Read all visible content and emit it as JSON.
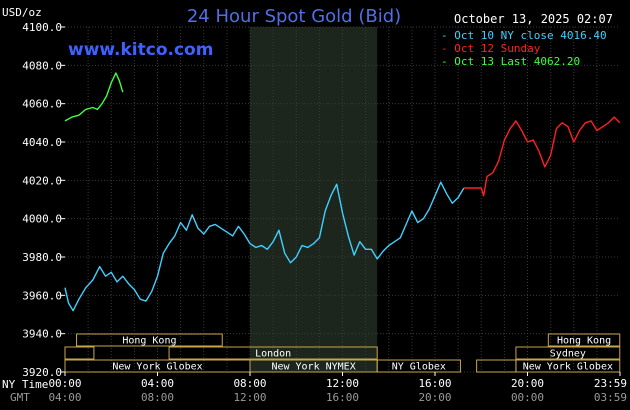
{
  "chart_data": {
    "type": "line",
    "title": "24 Hour Spot Gold (Bid)",
    "site": "www.kitco.com",
    "date": "October 13, 2025 02:07",
    "y_unit": "USD/oz",
    "ylim": [
      3920,
      4100
    ],
    "xlim": [
      0,
      24
    ],
    "y_ticks": [
      "4100.0",
      "4080.0",
      "4060.0",
      "4040.0",
      "4020.0",
      "4000.0",
      "3980.0",
      "3960.0",
      "3940.0",
      "3920.0"
    ],
    "x_ticks_ny": [
      "00:00",
      "04:00",
      "08:00",
      "12:00",
      "16:00",
      "20:00",
      "23:59"
    ],
    "x_ticks_gmt": [
      "04:00",
      "08:00",
      "12:00",
      "16:00",
      "20:00",
      "00:00",
      "03:59"
    ],
    "x_label_ny": "NY Time",
    "x_label_gmt": "GMT",
    "grid": true,
    "legend_position": "top-right",
    "legend": [
      {
        "name": "Oct 10 NY close 4016.40",
        "color": "#40d0ff"
      },
      {
        "name": "Oct 12 Sunday",
        "color": "#ff2020"
      },
      {
        "name": "Oct 13 Last 4062.20",
        "color": "#40ff40"
      }
    ],
    "highlight_range": [
      8,
      13.5
    ],
    "series": [
      {
        "color": "#40d0ff",
        "x": [
          0,
          0.15,
          0.35,
          0.6,
          0.9,
          1.2,
          1.5,
          1.75,
          2,
          2.25,
          2.5,
          2.75,
          3,
          3.25,
          3.5,
          3.75,
          4,
          4.25,
          4.5,
          4.75,
          5,
          5.25,
          5.5,
          5.75,
          6,
          6.25,
          6.5,
          6.75,
          7,
          7.25,
          7.5,
          7.75,
          8,
          8.25,
          8.5,
          8.75,
          9,
          9.25,
          9.5,
          9.75,
          10,
          10.25,
          10.5,
          10.75,
          11,
          11.25,
          11.5,
          11.75,
          12,
          12.25,
          12.5,
          12.75,
          13,
          13.25,
          13.5,
          13.75,
          14,
          14.25,
          14.5,
          14.75,
          15,
          15.25,
          15.5,
          15.75,
          16,
          16.25,
          16.5,
          16.75,
          17,
          17.25
        ],
        "values": [
          3964,
          3956,
          3952,
          3958,
          3964,
          3968,
          3975,
          3970,
          3972,
          3967,
          3970,
          3966,
          3963,
          3958,
          3957,
          3962,
          3970,
          3982,
          3987,
          3991,
          3998,
          3994,
          4002,
          3995,
          3992,
          3996,
          3997,
          3995,
          3993,
          3991,
          3996,
          3992,
          3987,
          3985,
          3986,
          3984,
          3988,
          3994,
          3982,
          3977,
          3980,
          3986,
          3985,
          3987,
          3990,
          4004,
          4012,
          4018,
          4003,
          3991,
          3981,
          3988,
          3984,
          3984,
          3979,
          3983,
          3986,
          3988,
          3990,
          3997,
          4004,
          3998,
          4000,
          4005,
          4012,
          4019,
          4013,
          4008,
          4011,
          4016
        ]
      },
      {
        "color": "#ff2020",
        "x": [
          17.25,
          17.6,
          18,
          18.1,
          18.25,
          18.5,
          18.75,
          19,
          19.25,
          19.5,
          19.75,
          20,
          20.25,
          20.5,
          20.75,
          21,
          21.25,
          21.5,
          21.75,
          22,
          22.25,
          22.5,
          22.75,
          23,
          23.25,
          23.5,
          23.75,
          23.99
        ],
        "values": [
          4016,
          4016,
          4016,
          4012,
          4022,
          4024,
          4030,
          4041,
          4047,
          4051,
          4046,
          4040,
          4041,
          4035,
          4027,
          4033,
          4047,
          4050,
          4048,
          4040,
          4046,
          4050,
          4051,
          4046,
          4048,
          4050,
          4053,
          4050
        ]
      },
      {
        "color": "#40ff40",
        "x": [
          0,
          0.3,
          0.6,
          0.9,
          1.2,
          1.4,
          1.6,
          1.8,
          2,
          2.2,
          2.35,
          2.5
        ],
        "values": [
          4051,
          4053,
          4054,
          4057,
          4058,
          4057,
          4060,
          4064,
          4071,
          4076,
          4072,
          4066
        ]
      }
    ],
    "sessions": [
      {
        "name": "Hong Kong",
        "start": 0.5,
        "end": 6.8,
        "row": 0
      },
      {
        "name": "",
        "start": 0,
        "end": 1.25,
        "row": 1
      },
      {
        "name": "London",
        "start": 4.5,
        "end": 13.5,
        "row": 1
      },
      {
        "name": "New York Globex",
        "start": 0,
        "end": 8,
        "row": 2
      },
      {
        "name": "New York NYMEX",
        "start": 8,
        "end": 13.5,
        "row": 2
      },
      {
        "name": "NY Globex",
        "start": 13.5,
        "end": 17.1,
        "row": 2
      },
      {
        "name": "Hong Kong",
        "start": 20.9,
        "end": 23.99,
        "row": 0
      },
      {
        "name": "Sydney",
        "start": 19.5,
        "end": 23.99,
        "row": 1
      },
      {
        "name": "",
        "start": 17.8,
        "end": 19.5,
        "row": 2
      },
      {
        "name": "New York Globex",
        "start": 19.5,
        "end": 23.99,
        "row": 2
      }
    ]
  }
}
